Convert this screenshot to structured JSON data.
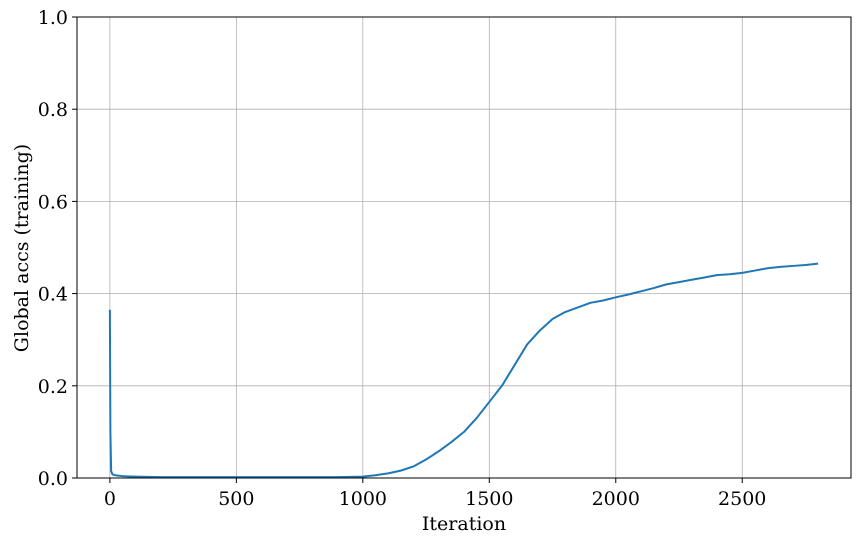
{
  "chart_data": {
    "type": "line",
    "title": "",
    "xlabel": "Iteration",
    "ylabel": "Global accs (training)",
    "xlim": [
      -130,
      2930
    ],
    "ylim": [
      0.0,
      1.0
    ],
    "grid": true,
    "x_ticks": [
      0,
      500,
      1000,
      1500,
      2000,
      2500
    ],
    "y_ticks": [
      0.0,
      0.2,
      0.4,
      0.6,
      0.8,
      1.0
    ],
    "x_tick_labels": [
      "0",
      "500",
      "1000",
      "1500",
      "2000",
      "2500"
    ],
    "y_tick_labels": [
      "0.0",
      "0.2",
      "0.4",
      "0.6",
      "0.8",
      "1.0"
    ],
    "series": [
      {
        "color": "#1f77b4",
        "x": [
          0,
          2,
          5,
          10,
          20,
          50,
          100,
          200,
          300,
          400,
          500,
          600,
          700,
          800,
          900,
          1000,
          1050,
          1100,
          1150,
          1200,
          1250,
          1300,
          1350,
          1400,
          1450,
          1500,
          1550,
          1600,
          1650,
          1700,
          1750,
          1800,
          1850,
          1900,
          1950,
          2000,
          2050,
          2100,
          2150,
          2200,
          2250,
          2300,
          2350,
          2400,
          2450,
          2500,
          2550,
          2600,
          2650,
          2700,
          2750,
          2800
        ],
        "y": [
          0.365,
          0.1,
          0.015,
          0.008,
          0.006,
          0.004,
          0.003,
          0.002,
          0.002,
          0.002,
          0.002,
          0.002,
          0.002,
          0.002,
          0.002,
          0.003,
          0.006,
          0.01,
          0.016,
          0.025,
          0.04,
          0.058,
          0.078,
          0.1,
          0.13,
          0.165,
          0.2,
          0.245,
          0.29,
          0.32,
          0.345,
          0.36,
          0.37,
          0.38,
          0.385,
          0.392,
          0.398,
          0.405,
          0.412,
          0.42,
          0.425,
          0.43,
          0.435,
          0.44,
          0.442,
          0.445,
          0.45,
          0.455,
          0.458,
          0.46,
          0.462,
          0.465
        ]
      }
    ]
  }
}
